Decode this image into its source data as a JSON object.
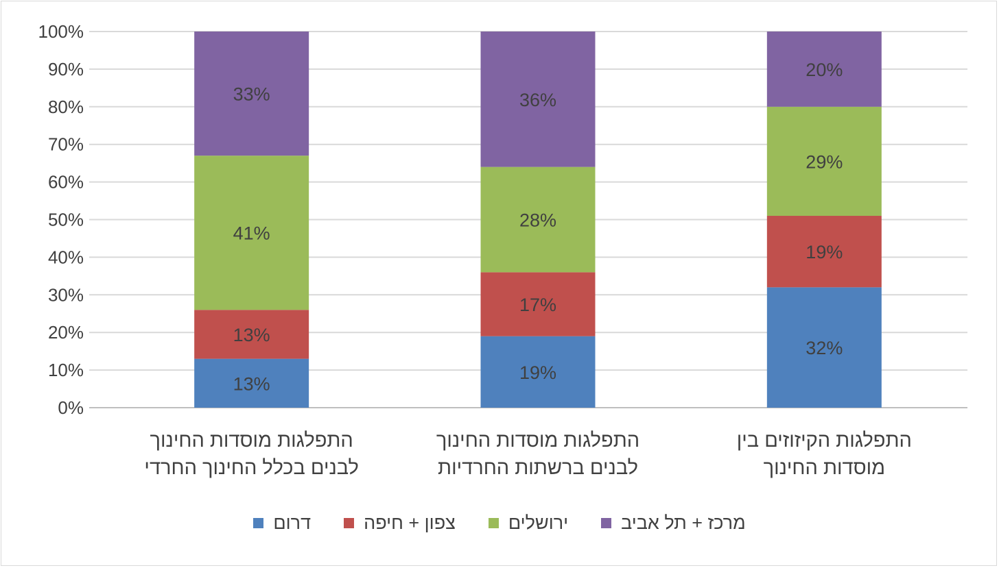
{
  "chart_data": {
    "type": "bar",
    "stacked": true,
    "categories": [
      [
        "התפלגות מוסדות החינוך",
        "לבנים בכלל החינוך החרדי"
      ],
      [
        "התפלגות מוסדות החינוך",
        "לבנים ברשתות החרדיות"
      ],
      [
        "התפלגות הקיזוזים בין",
        "מוסדות החינוך"
      ]
    ],
    "series": [
      {
        "name": "דרום",
        "color": "#4f81bd",
        "values": [
          13,
          19,
          32
        ],
        "labels": [
          "13%",
          "19%",
          "32%"
        ]
      },
      {
        "name": "צפון + חיפה",
        "color": "#c0504d",
        "values": [
          13,
          17,
          19
        ],
        "labels": [
          "13%",
          "17%",
          "19%"
        ]
      },
      {
        "name": "ירושלים",
        "color": "#9bbb59",
        "values": [
          41,
          28,
          29
        ],
        "labels": [
          "41%",
          "28%",
          "29%"
        ]
      },
      {
        "name": "מרכז + תל אביב",
        "color": "#8064a2",
        "values": [
          33,
          36,
          20
        ],
        "labels": [
          "33%",
          "36%",
          "20%"
        ]
      }
    ],
    "yticks": [
      "0%",
      "10%",
      "20%",
      "30%",
      "40%",
      "50%",
      "60%",
      "70%",
      "80%",
      "90%",
      "100%"
    ],
    "ylim": [
      0,
      100
    ],
    "grid": true,
    "legend": "bottom",
    "title": "",
    "xlabel": "",
    "ylabel": ""
  }
}
